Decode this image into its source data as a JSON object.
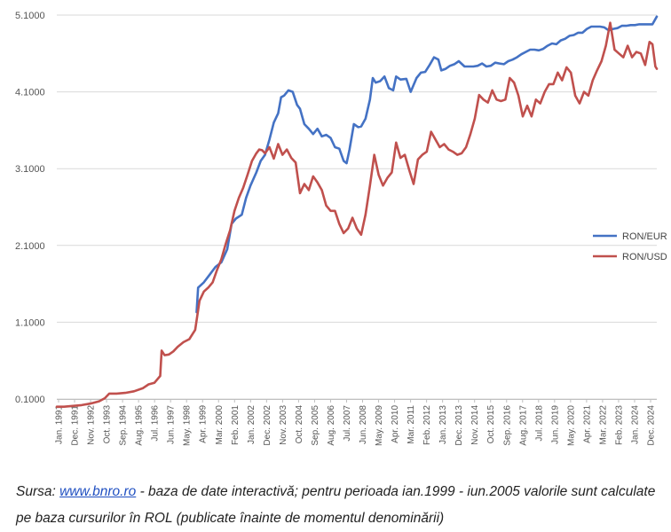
{
  "chart_data": {
    "type": "line",
    "y_ticks": [
      "0.1000",
      "1.1000",
      "2.1000",
      "3.1000",
      "4.1000",
      "5.1000"
    ],
    "ylim": [
      0.1,
      5.1
    ],
    "x_ticks": [
      "Jan. 1991",
      "Dec. 1991",
      "Nov. 1992",
      "Oct. 1993",
      "Sep. 1994",
      "Aug. 1995",
      "Jul. 1996",
      "Jun. 1997",
      "May. 1998",
      "Apr. 1999",
      "Mar. 2000",
      "Feb. 2001",
      "Jan. 2002",
      "Dec. 2002",
      "Nov. 2003",
      "Oct. 2004",
      "Sep. 2005",
      "Aug. 2006",
      "Jul. 2007",
      "Jun. 2008",
      "May. 2009",
      "Apr. 2010",
      "Mar. 2011",
      "Feb. 2012",
      "Jan. 2013",
      "Dec. 2013",
      "Nov. 2014",
      "Oct. 2015",
      "Sep. 2016",
      "Aug. 2017",
      "Jul. 2018",
      "Jun. 2019",
      "May. 2020",
      "Apr. 2021",
      "Mar. 2022",
      "Feb. 2023",
      "Jan. 2024",
      "Dec. 2024"
    ],
    "xlim": [
      "1991-01",
      "2025-05"
    ],
    "grid": {
      "horizontal": true,
      "vertical": false
    },
    "legend_position": "right",
    "series": [
      {
        "name": "RON/EUR",
        "color": "#4472c4",
        "points": [
          [
            "1999-01",
            1.23
          ],
          [
            "1999-02",
            1.55
          ],
          [
            "1999-06",
            1.62
          ],
          [
            "1999-10",
            1.72
          ],
          [
            "2000-02",
            1.82
          ],
          [
            "2000-06",
            1.88
          ],
          [
            "2000-10",
            2.05
          ],
          [
            "2001-01",
            2.38
          ],
          [
            "2001-04",
            2.45
          ],
          [
            "2001-08",
            2.5
          ],
          [
            "2001-11",
            2.72
          ],
          [
            "2002-02",
            2.88
          ],
          [
            "2002-06",
            3.05
          ],
          [
            "2002-09",
            3.2
          ],
          [
            "2002-12",
            3.28
          ],
          [
            "2003-03",
            3.48
          ],
          [
            "2003-06",
            3.7
          ],
          [
            "2003-09",
            3.82
          ],
          [
            "2003-11",
            4.03
          ],
          [
            "2004-01",
            4.05
          ],
          [
            "2004-04",
            4.12
          ],
          [
            "2004-07",
            4.1
          ],
          [
            "2004-10",
            3.93
          ],
          [
            "2004-12",
            3.88
          ],
          [
            "2005-03",
            3.68
          ],
          [
            "2005-06",
            3.62
          ],
          [
            "2005-09",
            3.55
          ],
          [
            "2005-12",
            3.62
          ],
          [
            "2006-03",
            3.52
          ],
          [
            "2006-06",
            3.54
          ],
          [
            "2006-09",
            3.5
          ],
          [
            "2006-12",
            3.38
          ],
          [
            "2007-03",
            3.36
          ],
          [
            "2007-06",
            3.2
          ],
          [
            "2007-08",
            3.17
          ],
          [
            "2007-10",
            3.35
          ],
          [
            "2008-01",
            3.68
          ],
          [
            "2008-04",
            3.64
          ],
          [
            "2008-06",
            3.65
          ],
          [
            "2008-09",
            3.75
          ],
          [
            "2008-12",
            4.0
          ],
          [
            "2009-02",
            4.28
          ],
          [
            "2009-04",
            4.22
          ],
          [
            "2009-07",
            4.24
          ],
          [
            "2009-10",
            4.3
          ],
          [
            "2010-01",
            4.15
          ],
          [
            "2010-04",
            4.12
          ],
          [
            "2010-06",
            4.3
          ],
          [
            "2010-09",
            4.26
          ],
          [
            "2011-01",
            4.27
          ],
          [
            "2011-04",
            4.1
          ],
          [
            "2011-08",
            4.28
          ],
          [
            "2011-11",
            4.35
          ],
          [
            "2012-02",
            4.36
          ],
          [
            "2012-05",
            4.45
          ],
          [
            "2012-08",
            4.55
          ],
          [
            "2012-11",
            4.52
          ],
          [
            "2013-01",
            4.38
          ],
          [
            "2013-04",
            4.4
          ],
          [
            "2013-07",
            4.44
          ],
          [
            "2013-10",
            4.46
          ],
          [
            "2014-01",
            4.5
          ],
          [
            "2014-05",
            4.43
          ],
          [
            "2014-08",
            4.43
          ],
          [
            "2014-11",
            4.43
          ],
          [
            "2015-02",
            4.44
          ],
          [
            "2015-05",
            4.47
          ],
          [
            "2015-08",
            4.43
          ],
          [
            "2015-11",
            4.44
          ],
          [
            "2016-02",
            4.48
          ],
          [
            "2016-05",
            4.47
          ],
          [
            "2016-08",
            4.46
          ],
          [
            "2016-11",
            4.5
          ],
          [
            "2017-02",
            4.52
          ],
          [
            "2017-05",
            4.55
          ],
          [
            "2017-08",
            4.59
          ],
          [
            "2017-11",
            4.62
          ],
          [
            "2018-02",
            4.65
          ],
          [
            "2018-05",
            4.65
          ],
          [
            "2018-08",
            4.64
          ],
          [
            "2018-11",
            4.66
          ],
          [
            "2019-02",
            4.7
          ],
          [
            "2019-05",
            4.73
          ],
          [
            "2019-08",
            4.72
          ],
          [
            "2019-11",
            4.77
          ],
          [
            "2020-02",
            4.79
          ],
          [
            "2020-05",
            4.83
          ],
          [
            "2020-08",
            4.84
          ],
          [
            "2020-11",
            4.87
          ],
          [
            "2021-02",
            4.87
          ],
          [
            "2021-05",
            4.92
          ],
          [
            "2021-08",
            4.95
          ],
          [
            "2021-11",
            4.95
          ],
          [
            "2022-02",
            4.95
          ],
          [
            "2022-05",
            4.94
          ],
          [
            "2022-08",
            4.9
          ],
          [
            "2022-11",
            4.92
          ],
          [
            "2023-02",
            4.93
          ],
          [
            "2023-05",
            4.96
          ],
          [
            "2023-08",
            4.96
          ],
          [
            "2023-11",
            4.97
          ],
          [
            "2024-02",
            4.97
          ],
          [
            "2024-05",
            4.98
          ],
          [
            "2024-08",
            4.98
          ],
          [
            "2024-11",
            4.98
          ],
          [
            "2025-02",
            4.98
          ],
          [
            "2025-05",
            5.08
          ]
        ]
      },
      {
        "name": "RON/USD",
        "color": "#c0504d",
        "points": [
          [
            "1991-01",
            0.0
          ],
          [
            "1991-06",
            0.0
          ],
          [
            "1991-12",
            0.01
          ],
          [
            "1992-06",
            0.02
          ],
          [
            "1992-12",
            0.04
          ],
          [
            "1993-06",
            0.07
          ],
          [
            "1993-10",
            0.11
          ],
          [
            "1994-01",
            0.17
          ],
          [
            "1994-06",
            0.17
          ],
          [
            "1994-12",
            0.18
          ],
          [
            "1995-06",
            0.2
          ],
          [
            "1995-12",
            0.24
          ],
          [
            "1996-04",
            0.29
          ],
          [
            "1996-08",
            0.31
          ],
          [
            "1996-12",
            0.4
          ],
          [
            "1997-01",
            0.73
          ],
          [
            "1997-03",
            0.67
          ],
          [
            "1997-06",
            0.68
          ],
          [
            "1997-09",
            0.72
          ],
          [
            "1997-12",
            0.78
          ],
          [
            "1998-04",
            0.84
          ],
          [
            "1998-08",
            0.88
          ],
          [
            "1998-12",
            1.0
          ],
          [
            "1999-03",
            1.38
          ],
          [
            "1999-06",
            1.5
          ],
          [
            "1999-09",
            1.55
          ],
          [
            "1999-12",
            1.62
          ],
          [
            "2000-03",
            1.78
          ],
          [
            "2000-06",
            1.92
          ],
          [
            "2000-09",
            2.12
          ],
          [
            "2000-12",
            2.3
          ],
          [
            "2001-03",
            2.55
          ],
          [
            "2001-06",
            2.72
          ],
          [
            "2001-09",
            2.85
          ],
          [
            "2001-12",
            3.02
          ],
          [
            "2002-03",
            3.2
          ],
          [
            "2002-06",
            3.3
          ],
          [
            "2002-08",
            3.35
          ],
          [
            "2002-10",
            3.34
          ],
          [
            "2002-12",
            3.3
          ],
          [
            "2003-03",
            3.38
          ],
          [
            "2003-06",
            3.23
          ],
          [
            "2003-09",
            3.42
          ],
          [
            "2003-12",
            3.28
          ],
          [
            "2004-03",
            3.35
          ],
          [
            "2004-06",
            3.24
          ],
          [
            "2004-09",
            3.18
          ],
          [
            "2004-12",
            2.78
          ],
          [
            "2005-03",
            2.9
          ],
          [
            "2005-06",
            2.82
          ],
          [
            "2005-09",
            3.0
          ],
          [
            "2005-12",
            2.92
          ],
          [
            "2006-03",
            2.82
          ],
          [
            "2006-06",
            2.62
          ],
          [
            "2006-09",
            2.55
          ],
          [
            "2006-12",
            2.55
          ],
          [
            "2007-03",
            2.38
          ],
          [
            "2007-06",
            2.26
          ],
          [
            "2007-09",
            2.32
          ],
          [
            "2007-12",
            2.46
          ],
          [
            "2008-03",
            2.32
          ],
          [
            "2008-06",
            2.24
          ],
          [
            "2008-09",
            2.5
          ],
          [
            "2008-12",
            2.88
          ],
          [
            "2009-03",
            3.28
          ],
          [
            "2009-06",
            3.02
          ],
          [
            "2009-09",
            2.88
          ],
          [
            "2009-12",
            2.98
          ],
          [
            "2010-03",
            3.05
          ],
          [
            "2010-06",
            3.44
          ],
          [
            "2010-09",
            3.24
          ],
          [
            "2010-12",
            3.28
          ],
          [
            "2011-03",
            3.08
          ],
          [
            "2011-06",
            2.9
          ],
          [
            "2011-09",
            3.22
          ],
          [
            "2011-12",
            3.28
          ],
          [
            "2012-03",
            3.32
          ],
          [
            "2012-06",
            3.58
          ],
          [
            "2012-09",
            3.48
          ],
          [
            "2012-12",
            3.38
          ],
          [
            "2013-03",
            3.42
          ],
          [
            "2013-06",
            3.35
          ],
          [
            "2013-09",
            3.32
          ],
          [
            "2013-12",
            3.28
          ],
          [
            "2014-03",
            3.3
          ],
          [
            "2014-06",
            3.38
          ],
          [
            "2014-09",
            3.55
          ],
          [
            "2014-12",
            3.75
          ],
          [
            "2015-03",
            4.06
          ],
          [
            "2015-06",
            4.0
          ],
          [
            "2015-09",
            3.96
          ],
          [
            "2015-12",
            4.12
          ],
          [
            "2016-03",
            4.0
          ],
          [
            "2016-06",
            3.98
          ],
          [
            "2016-09",
            4.0
          ],
          [
            "2016-12",
            4.28
          ],
          [
            "2017-03",
            4.22
          ],
          [
            "2017-06",
            4.05
          ],
          [
            "2017-09",
            3.78
          ],
          [
            "2017-12",
            3.92
          ],
          [
            "2018-03",
            3.78
          ],
          [
            "2018-06",
            4.0
          ],
          [
            "2018-09",
            3.95
          ],
          [
            "2018-12",
            4.1
          ],
          [
            "2019-03",
            4.2
          ],
          [
            "2019-06",
            4.2
          ],
          [
            "2019-09",
            4.35
          ],
          [
            "2019-12",
            4.25
          ],
          [
            "2020-03",
            4.42
          ],
          [
            "2020-06",
            4.35
          ],
          [
            "2020-09",
            4.05
          ],
          [
            "2020-12",
            3.95
          ],
          [
            "2021-03",
            4.1
          ],
          [
            "2021-06",
            4.05
          ],
          [
            "2021-09",
            4.25
          ],
          [
            "2021-12",
            4.38
          ],
          [
            "2022-03",
            4.5
          ],
          [
            "2022-06",
            4.7
          ],
          [
            "2022-09",
            5.0
          ],
          [
            "2022-12",
            4.65
          ],
          [
            "2023-03",
            4.6
          ],
          [
            "2023-06",
            4.55
          ],
          [
            "2023-09",
            4.7
          ],
          [
            "2023-12",
            4.55
          ],
          [
            "2024-03",
            4.62
          ],
          [
            "2024-06",
            4.6
          ],
          [
            "2024-09",
            4.45
          ],
          [
            "2024-12",
            4.75
          ],
          [
            "2025-02",
            4.72
          ],
          [
            "2025-04",
            4.43
          ],
          [
            "2025-05",
            4.4
          ]
        ]
      }
    ]
  },
  "caption": {
    "prefix": "Sursa: ",
    "link_text": "www.bnro.ro",
    "rest": " - baza de date interactivă; pentru perioada ian.1999 - iun.2005 valorile sunt calculate pe baza cursurilor în ROL (publicate înainte de momentul denominării)"
  }
}
